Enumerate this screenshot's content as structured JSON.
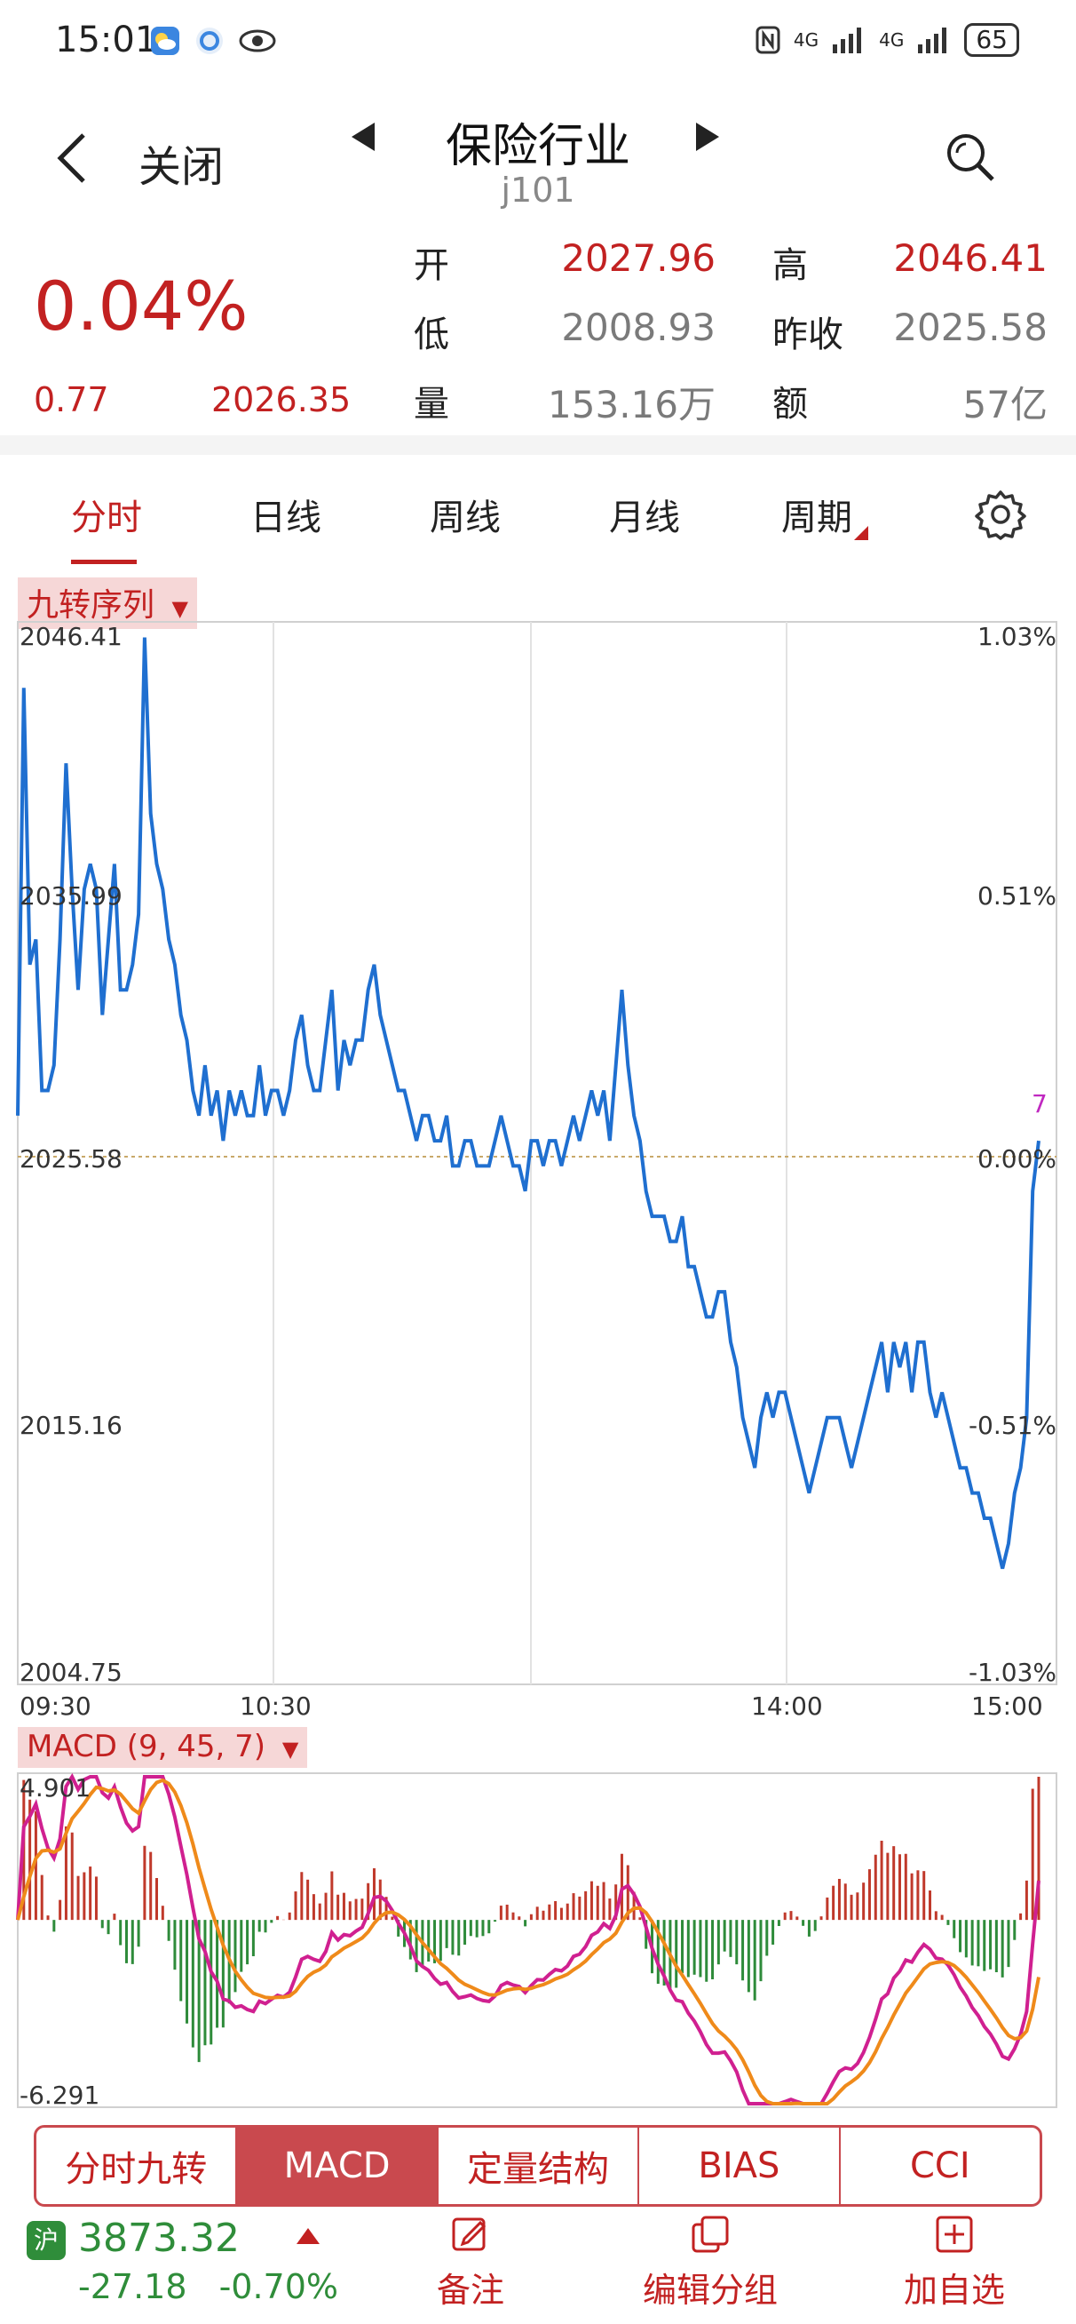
{
  "status": {
    "time": "15:01",
    "net1": "4G",
    "net2": "4G",
    "battery": "65"
  },
  "header": {
    "back_label": "关闭",
    "title": "保险行业",
    "code": "j101"
  },
  "quote": {
    "pct": "0.04%",
    "change": "0.77",
    "last": "2026.35",
    "open_label": "开",
    "open": "2027.96",
    "high_label": "高",
    "high": "2046.41",
    "low_label": "低",
    "low": "2008.93",
    "prev_label": "昨收",
    "prev": "2025.58",
    "vol_label": "量",
    "vol": "153.16万",
    "amt_label": "额",
    "amt": "57亿"
  },
  "tabs": [
    "分时",
    "日线",
    "周线",
    "月线",
    "周期"
  ],
  "active_tab": "分时",
  "overlay_pill": "九转序列",
  "chart_data": [
    {
      "type": "line",
      "y_left_ticks": [
        "2046.41",
        "2035.99",
        "2025.58",
        "2015.16",
        "2004.75"
      ],
      "y_right_ticks": [
        "1.03%",
        "0.51%",
        "0.00%",
        "-0.51%",
        "-1.03%"
      ],
      "x_ticks": [
        "09:30",
        "10:30",
        "14:00",
        "15:00"
      ],
      "ylim": [
        2004.75,
        2046.41
      ],
      "reference_line": 2025.58,
      "marker_label": "7",
      "series": [
        {
          "values": [
            2027,
            2044,
            2033,
            2034,
            2028,
            2028,
            2029,
            2034,
            2041,
            2036,
            2032,
            2036,
            2037,
            2036,
            2031,
            2034,
            2037,
            2032,
            2032,
            2033,
            2035,
            2046,
            2039,
            2037,
            2036,
            2034,
            2033,
            2031,
            2030,
            2028,
            2027,
            2029,
            2027,
            2028,
            2026,
            2028,
            2027,
            2028,
            2027,
            2027,
            2029,
            2027,
            2028,
            2028,
            2027,
            2028,
            2030,
            2031,
            2029,
            2028,
            2028,
            2030,
            2032,
            2028,
            2030,
            2029,
            2030,
            2030,
            2032,
            2033,
            2031,
            2030,
            2029,
            2028,
            2028,
            2027,
            2026,
            2027,
            2027,
            2026,
            2026,
            2027,
            2025,
            2025,
            2026,
            2026,
            2025,
            2025,
            2025,
            2026,
            2027,
            2026,
            2025,
            2025,
            2024,
            2026,
            2026,
            2025,
            2026,
            2026,
            2025,
            2026,
            2027,
            2026,
            2027,
            2028,
            2027,
            2028,
            2026,
            2029,
            2032,
            2029,
            2027,
            2026,
            2024,
            2023,
            2023,
            2023,
            2022,
            2022,
            2023,
            2021,
            2021,
            2020,
            2019,
            2019,
            2020,
            2020,
            2018,
            2017,
            2015,
            2014,
            2013,
            2015,
            2016,
            2015,
            2016,
            2016,
            2015,
            2014,
            2013,
            2012,
            2013,
            2014,
            2015,
            2015,
            2015,
            2014,
            2013,
            2014,
            2015,
            2016,
            2017,
            2018,
            2016,
            2018,
            2017,
            2018,
            2016,
            2018,
            2018,
            2016,
            2015,
            2016,
            2015,
            2014,
            2013,
            2013,
            2012,
            2012,
            2011,
            2011,
            2010,
            2009,
            2010,
            2012,
            2013,
            2015,
            2024,
            2026
          ]
        }
      ]
    },
    {
      "type": "bar",
      "title": "MACD (9, 45, 7)",
      "y_max_label": "4.901",
      "y_min_label": "-6.291",
      "ylim": [
        -6.291,
        4.901
      ]
    }
  ],
  "indicators": [
    "分时九转",
    "MACD",
    "定量结构",
    "BIAS",
    "CCI"
  ],
  "active_indicator": "MACD",
  "footer": {
    "market_badge": "沪",
    "index_value": "3873.32",
    "index_change": "-27.18",
    "index_pct": "-0.70%",
    "note_label": "备注",
    "group_label": "编辑分组",
    "add_label": "加自选"
  }
}
